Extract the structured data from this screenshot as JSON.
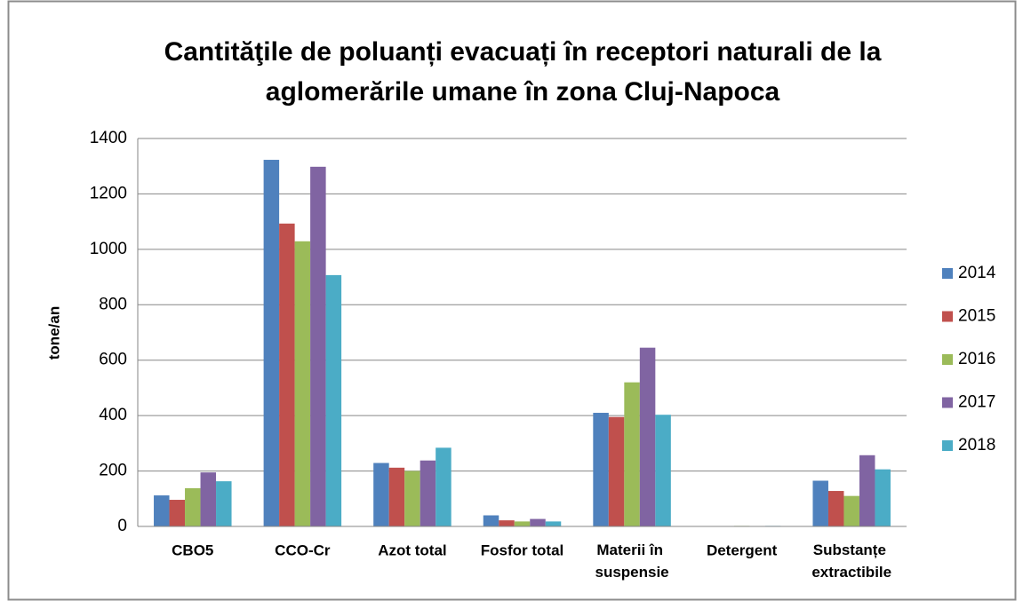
{
  "chart_data": {
    "type": "bar",
    "title": [
      "Cantităţile de poluanți evacuați în receptori naturali de la",
      "aglomerările umane în zona Cluj-Napoca"
    ],
    "y_label": "tone/an",
    "categories": [
      "CBO5",
      "CCO-Cr",
      "Azot total",
      "Fosfor total",
      "Materii în suspensie",
      "Detergent",
      "Substanțe extractibile"
    ],
    "series": [
      {
        "name": "2014",
        "color": "#4f81bd",
        "values": [
          112,
          1323,
          229,
          40,
          410,
          1,
          165
        ]
      },
      {
        "name": "2015",
        "color": "#c0504d",
        "values": [
          96,
          1093,
          212,
          22,
          395,
          1,
          128
        ]
      },
      {
        "name": "2016",
        "color": "#9bbb59",
        "values": [
          138,
          1029,
          200,
          18,
          520,
          2,
          110
        ]
      },
      {
        "name": "2017",
        "color": "#8064a2",
        "values": [
          195,
          1298,
          238,
          27,
          645,
          1,
          257
        ]
      },
      {
        "name": "2018",
        "color": "#4bacc6",
        "values": [
          163,
          907,
          284,
          18,
          403,
          2,
          206
        ]
      }
    ],
    "ylim": [
      0,
      1400
    ],
    "yticks": [
      0,
      200,
      400,
      600,
      800,
      1000,
      1200,
      1400
    ],
    "grid": true,
    "legend": "right"
  }
}
